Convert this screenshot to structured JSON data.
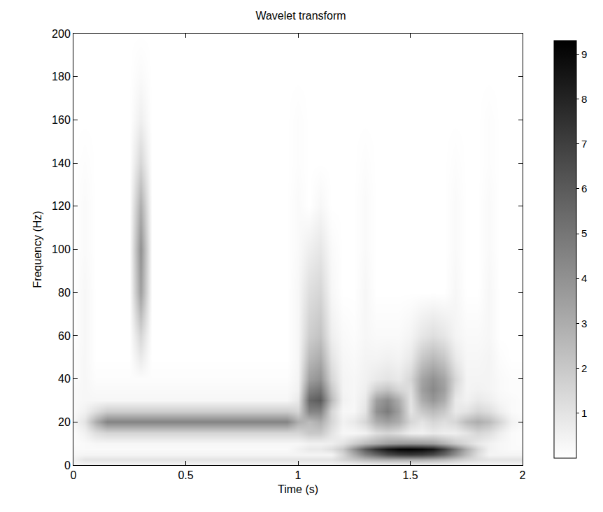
{
  "chart_data": {
    "type": "heatmap",
    "title": "Wavelet transform",
    "x_label": "Time (s)",
    "y_label": "Frequency (Hz)",
    "xlim": [
      0,
      2
    ],
    "ylim": [
      0,
      200
    ],
    "xticks": [
      0,
      0.5,
      1,
      1.5,
      2
    ],
    "yticks": [
      0,
      20,
      40,
      60,
      80,
      100,
      120,
      140,
      160,
      180,
      200
    ],
    "grid": false,
    "colorbar_range": [
      0,
      9.3
    ],
    "colorbar_ticks": [
      1,
      2,
      3,
      4,
      5,
      6,
      7,
      8,
      9
    ],
    "x": [
      0,
      0.05,
      0.1,
      0.15,
      0.2,
      0.25,
      0.3,
      0.35,
      0.4,
      0.45,
      0.5,
      0.55,
      0.6,
      0.65,
      0.7,
      0.75,
      0.8,
      0.85,
      0.9,
      0.95,
      1,
      1.05,
      1.1,
      1.15,
      1.2,
      1.25,
      1.3,
      1.35,
      1.4,
      1.45,
      1.5,
      1.55,
      1.6,
      1.65,
      1.7,
      1.75,
      1.8,
      1.85,
      1.9,
      1.95,
      2
    ],
    "y": [
      0,
      2.5,
      5,
      7.5,
      10,
      15,
      20,
      25,
      30,
      35,
      40,
      50,
      60,
      80,
      100,
      120,
      140,
      160,
      180,
      200
    ],
    "z": [
      [
        0.3,
        0.3,
        0.3,
        0.3,
        0.3,
        0.3,
        0.3,
        0.3,
        0.3,
        0.3,
        0.3,
        0.3,
        0.3,
        0.3,
        0.3,
        0.3,
        0.3,
        0.3,
        0.3,
        0.3,
        0.3,
        0.3,
        0.3,
        0.3,
        0.3,
        0.3,
        0.3,
        0.3,
        0.3,
        0.3,
        0.3,
        0.3,
        0.3,
        0.3,
        0.3,
        0.3,
        0.3,
        0.3,
        0.3,
        0.3,
        0.3
      ],
      [
        0.5,
        1,
        1,
        1,
        1,
        1,
        1,
        1,
        1,
        1,
        1,
        1,
        1,
        1,
        1,
        1,
        1,
        1,
        1,
        1,
        1,
        1,
        1,
        1,
        1.5,
        2,
        2.5,
        2.8,
        3,
        3,
        3,
        3,
        2.8,
        2.5,
        2,
        1.5,
        1.2,
        1,
        1,
        1,
        1
      ],
      [
        0.3,
        0.4,
        0.4,
        0.4,
        0.4,
        0.4,
        0.4,
        0.4,
        0.4,
        0.4,
        0.4,
        0.4,
        0.4,
        0.4,
        0.4,
        0.4,
        0.4,
        0.4,
        0.4,
        0.4,
        0.4,
        0.4,
        0.4,
        0.4,
        1.5,
        3,
        4.5,
        5.5,
        6.5,
        7,
        7.2,
        7,
        6.5,
        5.5,
        4,
        2.5,
        1.2,
        0.4,
        0.4,
        0.4,
        0.4
      ],
      [
        0.2,
        0.2,
        0.2,
        0.2,
        0.2,
        0.2,
        0.2,
        0.2,
        0.2,
        0.2,
        0.2,
        0.2,
        0.2,
        0.2,
        0.2,
        0.2,
        0.2,
        0.2,
        0.2,
        0.2,
        0.5,
        0.8,
        0.8,
        1.2,
        2,
        4,
        6,
        7.5,
        8.5,
        9.1,
        9.2,
        9,
        8.5,
        7,
        5,
        3,
        1.5,
        0.5,
        0.3,
        0.2,
        0.2
      ],
      [
        0.1,
        0.2,
        0.3,
        0.3,
        0.3,
        0.3,
        0.3,
        0.3,
        0.3,
        0.3,
        0.3,
        0.3,
        0.3,
        0.3,
        0.3,
        0.3,
        0.3,
        0.3,
        0.3,
        0.3,
        0.3,
        0.5,
        0.5,
        0.6,
        1,
        1.8,
        2.5,
        3,
        3.5,
        3.7,
        3.8,
        3.7,
        3.5,
        2.8,
        2,
        1.4,
        0.8,
        0.5,
        0.3,
        0.2,
        0.1
      ],
      [
        0.1,
        0.5,
        1.2,
        1.5,
        1.5,
        1.5,
        1.5,
        1.5,
        1.5,
        1.5,
        1.5,
        1.5,
        1.5,
        1.5,
        1.5,
        1.5,
        1.5,
        1.5,
        1.5,
        1.5,
        1.5,
        2,
        2,
        1,
        0.3,
        0.3,
        0.5,
        1.2,
        1.5,
        1.2,
        0.6,
        0.5,
        0.8,
        0.6,
        0.6,
        1.0,
        1.5,
        1.2,
        0.6,
        0.2,
        0.1
      ],
      [
        0.3,
        1,
        3,
        4.5,
        4.5,
        4.5,
        4.5,
        4.5,
        4.5,
        4.5,
        4.5,
        4.5,
        4.5,
        4.5,
        4.5,
        4.5,
        4.5,
        4.5,
        4.5,
        4.5,
        3,
        2.5,
        3,
        1.5,
        0.5,
        0.8,
        1.5,
        3,
        3.5,
        3,
        1.5,
        1,
        1.5,
        1.2,
        1.5,
        2.5,
        3,
        2.5,
        1.5,
        0.5,
        0.2
      ],
      [
        0.2,
        0.5,
        1.2,
        1.8,
        1.8,
        1.8,
        1.8,
        1.8,
        1.8,
        1.8,
        1.8,
        1.8,
        1.8,
        1.8,
        1.8,
        1.8,
        1.8,
        1.8,
        1.8,
        1.8,
        1.5,
        4.5,
        4.5,
        1.5,
        0.3,
        0.3,
        1,
        4,
        4.8,
        3.5,
        1,
        2,
        2.5,
        2,
        0.8,
        1,
        1.5,
        1.2,
        0.6,
        0.2,
        0.1
      ],
      [
        0.2,
        0.3,
        0.3,
        0.3,
        0.3,
        0.3,
        0.3,
        0.3,
        0.3,
        0.3,
        0.3,
        0.3,
        0.3,
        0.3,
        0.3,
        0.3,
        0.3,
        0.3,
        0.3,
        0.3,
        0.8,
        5.5,
        6,
        2.5,
        0.5,
        0.3,
        0.8,
        3.5,
        4.2,
        3,
        1,
        3,
        3.8,
        3,
        0.8,
        0.5,
        0.8,
        0.6,
        0.3,
        0.2,
        0.1
      ],
      [
        0.2,
        0.3,
        0.2,
        0.2,
        0.2,
        0.2,
        0.2,
        0.2,
        0.2,
        0.2,
        0.2,
        0.2,
        0.2,
        0.2,
        0.2,
        0.2,
        0.2,
        0.2,
        0.2,
        0.2,
        0.5,
        4.5,
        5,
        2,
        0.4,
        0.3,
        0.6,
        1.8,
        2.2,
        1.5,
        1.2,
        3.5,
        4.3,
        3.5,
        1.2,
        0.4,
        0.5,
        0.4,
        0.2,
        0.1,
        0.1
      ],
      [
        0.1,
        0.3,
        0.1,
        0.1,
        0.1,
        0.1,
        0.1,
        0.1,
        0.1,
        0.1,
        0.1,
        0.1,
        0.1,
        0.1,
        0.1,
        0.1,
        0.1,
        0.1,
        0.1,
        0.1,
        0.4,
        3.5,
        4,
        1.5,
        0.4,
        0.3,
        0.5,
        0.8,
        1,
        0.8,
        1.5,
        3.3,
        4,
        3.3,
        1.5,
        0.4,
        0.4,
        0.4,
        0.2,
        0.1,
        0.1
      ],
      [
        0.1,
        0.3,
        0,
        0,
        0,
        0,
        0.8,
        0,
        0,
        0,
        0,
        0,
        0,
        0,
        0,
        0,
        0,
        0,
        0,
        0,
        0.3,
        2.5,
        3,
        1,
        0.3,
        0.2,
        0.4,
        0.4,
        0.5,
        0.4,
        0.8,
        2,
        2.5,
        2,
        0.8,
        0.3,
        0.3,
        0.4,
        0.1,
        0,
        0
      ],
      [
        0,
        0.3,
        0,
        0,
        0,
        0,
        1.5,
        0,
        0,
        0,
        0,
        0,
        0,
        0,
        0,
        0,
        0,
        0,
        0,
        0,
        0.3,
        1.8,
        2.2,
        0.6,
        0.2,
        0.1,
        0.3,
        0.2,
        0.2,
        0.2,
        0.4,
        0.9,
        1.2,
        0.9,
        0.4,
        0.2,
        0.2,
        0.3,
        0,
        0,
        0
      ],
      [
        0,
        0.3,
        0,
        0,
        0,
        0,
        3.5,
        0,
        0,
        0,
        0,
        0,
        0,
        0,
        0,
        0,
        0,
        0,
        0,
        0,
        0.3,
        1.2,
        1.5,
        0.3,
        0,
        0,
        0.3,
        0,
        0,
        0,
        0,
        0,
        0,
        0,
        0.3,
        0,
        0,
        0.3,
        0,
        0,
        0
      ],
      [
        0,
        0.2,
        0,
        0,
        0,
        0,
        4,
        0,
        0,
        0,
        0,
        0,
        0,
        0,
        0,
        0,
        0,
        0,
        0,
        0,
        0.2,
        0.6,
        0.9,
        0.2,
        0,
        0,
        0.2,
        0,
        0,
        0,
        0,
        0,
        0,
        0,
        0.2,
        0,
        0,
        0.2,
        0,
        0,
        0
      ],
      [
        0,
        0.2,
        0,
        0,
        0,
        0,
        3,
        0,
        0,
        0,
        0,
        0,
        0,
        0,
        0,
        0,
        0,
        0,
        0,
        0,
        0.2,
        0,
        0.3,
        0,
        0,
        0,
        0.2,
        0,
        0,
        0,
        0,
        0,
        0,
        0,
        0.2,
        0,
        0,
        0.2,
        0,
        0,
        0
      ],
      [
        0,
        0.1,
        0,
        0,
        0,
        0,
        1.5,
        0,
        0,
        0,
        0,
        0,
        0,
        0,
        0,
        0,
        0,
        0,
        0,
        0,
        0.1,
        0,
        0,
        0,
        0,
        0,
        0.1,
        0,
        0,
        0,
        0,
        0,
        0,
        0,
        0.1,
        0,
        0,
        0.1,
        0,
        0,
        0
      ],
      [
        0,
        0,
        0,
        0,
        0,
        0,
        0.6,
        0,
        0,
        0,
        0,
        0,
        0,
        0,
        0,
        0,
        0,
        0,
        0,
        0,
        0.1,
        0,
        0,
        0,
        0,
        0,
        0,
        0,
        0,
        0,
        0,
        0,
        0,
        0,
        0,
        0,
        0,
        0.1,
        0,
        0,
        0
      ],
      [
        0,
        0,
        0,
        0,
        0,
        0,
        0.2,
        0,
        0,
        0,
        0,
        0,
        0,
        0,
        0,
        0,
        0,
        0,
        0,
        0,
        0,
        0,
        0,
        0,
        0,
        0,
        0,
        0,
        0,
        0,
        0,
        0,
        0,
        0,
        0,
        0,
        0,
        0,
        0,
        0,
        0
      ],
      [
        0,
        0,
        0,
        0,
        0,
        0,
        0,
        0,
        0,
        0,
        0,
        0,
        0,
        0,
        0,
        0,
        0,
        0,
        0,
        0,
        0,
        0,
        0,
        0,
        0,
        0,
        0,
        0,
        0,
        0,
        0,
        0,
        0,
        0,
        0,
        0,
        0,
        0,
        0,
        0,
        0
      ]
    ]
  }
}
